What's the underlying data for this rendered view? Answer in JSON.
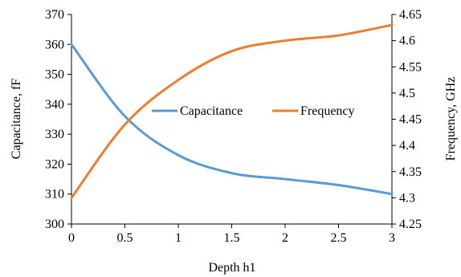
{
  "chart_data": {
    "type": "line",
    "title": "",
    "xlabel": "Depth h1",
    "ylabel": "Capacitance, fF",
    "y2label": "Frequency, GHz",
    "xlim": [
      0,
      3
    ],
    "ylim": [
      300,
      370
    ],
    "y2lim": [
      4.25,
      4.65
    ],
    "x_ticks": [
      "0",
      "0.5",
      "1",
      "1.5",
      "2",
      "2.5",
      "3"
    ],
    "y_ticks": [
      "300",
      "310",
      "320",
      "330",
      "340",
      "350",
      "360",
      "370"
    ],
    "y2_ticks": [
      "4.25",
      "4.3",
      "4.35",
      "4.4",
      "4.45",
      "4.5",
      "4.55",
      "4.6",
      "4.65"
    ],
    "grid": false,
    "legend_position": "center-right",
    "series": [
      {
        "name": "Capacitance",
        "axis": "left",
        "color": "#5b9bd5",
        "x": [
          0,
          0.5,
          1,
          1.5,
          2,
          2.5,
          3
        ],
        "y": [
          360,
          336,
          323,
          317,
          315,
          313,
          310
        ]
      },
      {
        "name": "Frequency",
        "axis": "right",
        "color": "#ed7d31",
        "x": [
          0,
          0.5,
          1,
          1.5,
          2,
          2.5,
          3
        ],
        "y": [
          4.3,
          4.44,
          4.525,
          4.58,
          4.6,
          4.61,
          4.63
        ]
      }
    ]
  }
}
